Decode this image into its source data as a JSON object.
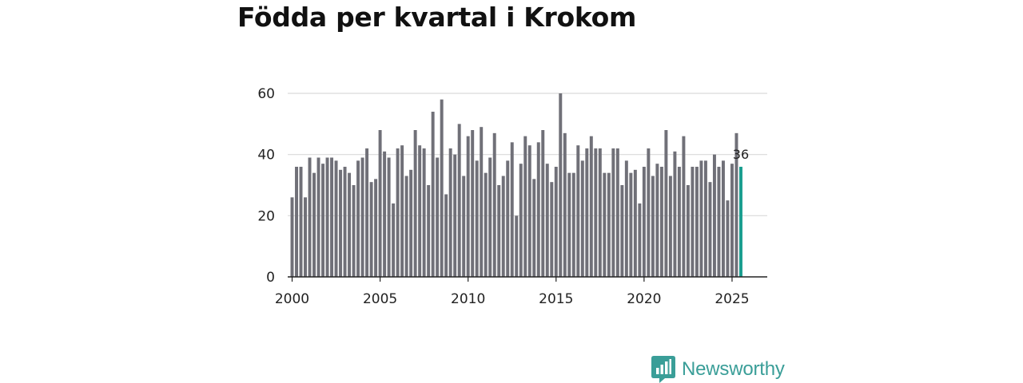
{
  "title": "Födda per kvartal i Krokom",
  "brand": {
    "name": "Newsworthy",
    "color": "#3a9e98",
    "icon": "bar-chart-logo-icon"
  },
  "chart_data": {
    "type": "bar",
    "title": "Födda per kvartal i Krokom",
    "xlabel": "",
    "ylabel": "",
    "ylim": [
      0,
      60
    ],
    "xlim": [
      1999.75,
      2027.0
    ],
    "yticks": [
      0,
      20,
      40,
      60
    ],
    "xticks": [
      "2000",
      "2005",
      "2010",
      "2015",
      "2020",
      "2025"
    ],
    "grid": true,
    "bar_color": "#707078",
    "highlight_color": "#1a9e8f",
    "start_year": 2000,
    "values": [
      26,
      36,
      36,
      26,
      39,
      34,
      39,
      37,
      39,
      39,
      38,
      35,
      36,
      34,
      30,
      38,
      39,
      42,
      31,
      32,
      48,
      41,
      39,
      24,
      42,
      43,
      33,
      35,
      48,
      43,
      42,
      30,
      54,
      39,
      58,
      27,
      42,
      40,
      50,
      33,
      46,
      48,
      38,
      49,
      34,
      39,
      47,
      30,
      33,
      38,
      44,
      20,
      37,
      46,
      43,
      32,
      44,
      48,
      37,
      31,
      36,
      60,
      47,
      34,
      34,
      43,
      38,
      42,
      46,
      42,
      42,
      34,
      34,
      42,
      42,
      30,
      38,
      34,
      35,
      24,
      36,
      42,
      33,
      37,
      36,
      48,
      33,
      41,
      36,
      46,
      30,
      36,
      36,
      38,
      38,
      31,
      40,
      36,
      38,
      25,
      37,
      47,
      36
    ],
    "highlight": {
      "label": "36",
      "value": 36
    }
  }
}
